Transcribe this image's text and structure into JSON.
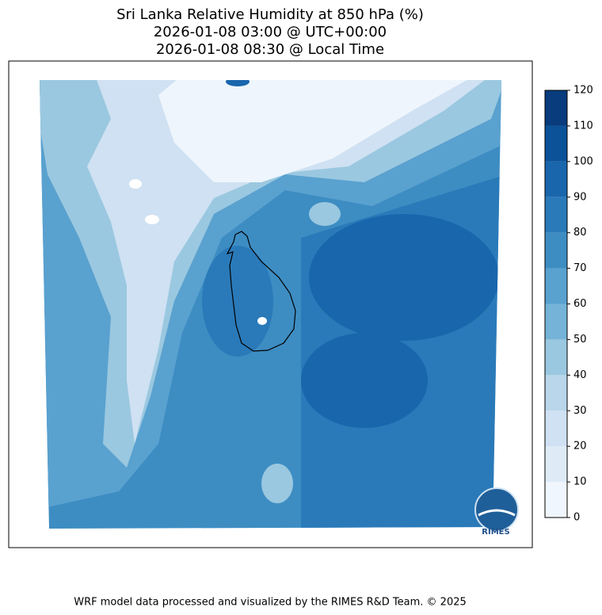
{
  "header": {
    "title_lines": [
      "Sri Lanka Relative Humidity at 850 hPa (%)",
      "2026-01-08 03:00 @ UTC+00:00",
      "2026-01-08 08:30 @ Local Time"
    ]
  },
  "colorbar": {
    "ticks": [
      0,
      10,
      20,
      30,
      40,
      50,
      60,
      70,
      80,
      90,
      100,
      110,
      120
    ],
    "colors": [
      "#f0f6fd",
      "#deebf7",
      "#cfe1f2",
      "#b9d6ea",
      "#9ac8e0",
      "#75b4d8",
      "#59a1cf",
      "#3d8dc3",
      "#2a7ab9",
      "#1966ad",
      "#0b5299",
      "#083c7d"
    ]
  },
  "logo": {
    "text": "RIMES"
  },
  "footer": {
    "text": "WRF model data processed and visualized by the RIMES R&D Team. © 2025"
  }
}
